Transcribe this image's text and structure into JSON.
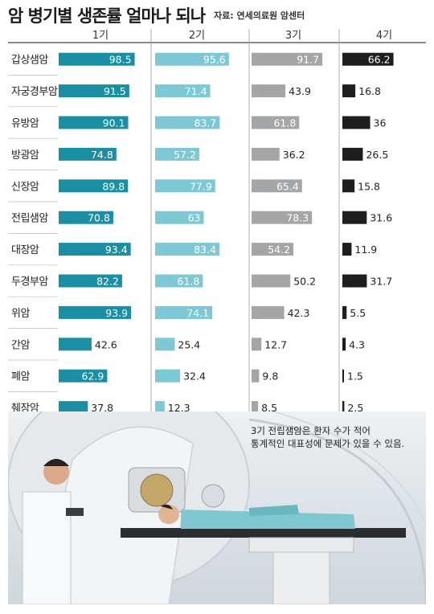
{
  "header": {
    "title": "암 병기별 생존률 얼마나 되나",
    "source": "자료: 연세의료원 암센터"
  },
  "note": {
    "line1": "3기 전립샘암은 환자 수가 적어",
    "line2": "통계적인 대표성에 문제가 있을 수 있음."
  },
  "chart_data": {
    "type": "bar",
    "orientation": "horizontal",
    "categories": [
      "갑상샘암",
      "자궁경부암",
      "유방암",
      "방광암",
      "신장암",
      "전립샘암",
      "대장암",
      "두경부암",
      "위암",
      "간암",
      "폐암",
      "췌장암"
    ],
    "series": [
      {
        "name": "1기",
        "color": "#1a8fa3",
        "values": [
          98.5,
          91.5,
          90.1,
          74.8,
          89.8,
          70.8,
          93.4,
          82.2,
          93.9,
          42.6,
          62.9,
          37.8
        ]
      },
      {
        "name": "2기",
        "color": "#7cc8d4",
        "values": [
          95.6,
          71.4,
          83.7,
          57.2,
          77.9,
          63,
          83.4,
          61.8,
          74.1,
          25.4,
          32.4,
          12.3
        ]
      },
      {
        "name": "3기",
        "color": "#a3a5a7",
        "values": [
          91.7,
          43.9,
          61.8,
          36.2,
          65.4,
          78.3,
          54.2,
          50.2,
          42.3,
          12.7,
          9.8,
          8.5
        ]
      },
      {
        "name": "4기",
        "color": "#1e1e1e",
        "values": [
          66.2,
          16.8,
          36,
          26.5,
          15.8,
          31.6,
          11.9,
          31.7,
          5.5,
          4.3,
          1.5,
          2.5
        ]
      }
    ],
    "xlim": [
      0,
      100
    ],
    "legend": "top"
  }
}
